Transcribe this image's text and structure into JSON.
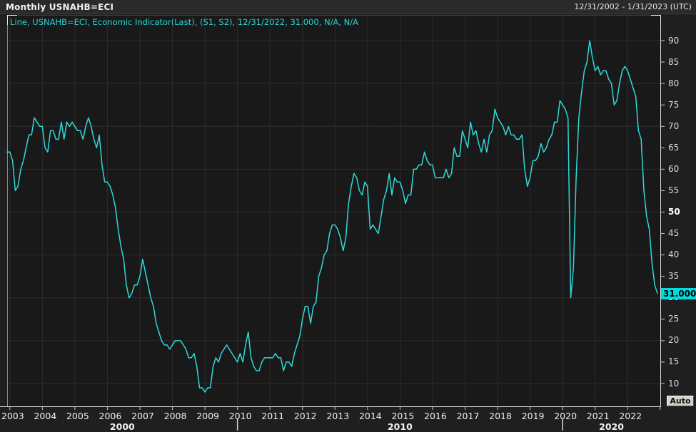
{
  "titlebar": {
    "title": "Monthly USNAHB=ECI",
    "date_range": "12/31/2002 - 1/31/2023 (UTC)"
  },
  "legend": {
    "text": "Line, USNAHB=ECI, Economic Indicator(Last), (S1, S2), 12/31/2022, 31.000, N/A, N/A"
  },
  "y_axis": {
    "ticks": [
      90,
      85,
      80,
      75,
      70,
      65,
      60,
      55,
      50,
      45,
      40,
      35,
      30,
      25,
      20,
      15,
      10
    ],
    "bold_tick": 50,
    "last_value_label": "31.000"
  },
  "x_axis": {
    "years": [
      "2003",
      "2004",
      "2005",
      "2006",
      "2007",
      "2008",
      "2009",
      "2010",
      "2011",
      "2012",
      "2013",
      "2014",
      "2015",
      "2016",
      "2017",
      "2018",
      "2019",
      "2020",
      "2021",
      "2022"
    ],
    "decades": [
      {
        "label": "2000",
        "start_year": 2003,
        "end_year": 2010
      },
      {
        "label": "2010",
        "start_year": 2010,
        "end_year": 2020
      },
      {
        "label": "2020",
        "start_year": 2020,
        "end_year": 2023
      }
    ],
    "decade_separator_years": [
      2010,
      2020
    ]
  },
  "auto_button": {
    "label": "Auto"
  },
  "colors": {
    "line": "#2fd9d9",
    "legend_text": "#2bd4d4",
    "badge_bg": "#00dcdc",
    "plot_bg": "#191919",
    "grid": "#2d2d2d",
    "axis_text": "#dcdcdc",
    "border_light": "#e0e0e0",
    "border_dim": "#8a8a8a"
  },
  "chart_data": {
    "type": "line",
    "title": "Monthly USNAHB=ECI",
    "series_name": "USNAHB=ECI, Economic Indicator(Last)",
    "frequency": "monthly",
    "start": "2002-12",
    "end": "2022-12",
    "last_date": "12/31/2022",
    "last_value": 31.0,
    "y_ticks": [
      10,
      20,
      30,
      40,
      50,
      60,
      70,
      80,
      90
    ],
    "ylim": [
      5,
      96
    ],
    "x_years": [
      2003,
      2004,
      2005,
      2006,
      2007,
      2008,
      2009,
      2010,
      2011,
      2012,
      2013,
      2014,
      2015,
      2016,
      2017,
      2018,
      2019,
      2020,
      2021,
      2022
    ],
    "grid": true,
    "legend_position": "top-left",
    "values": [
      64,
      64,
      62,
      55,
      56,
      60,
      62,
      65,
      68,
      68,
      72,
      71,
      70,
      70,
      65,
      64,
      69,
      69,
      67,
      67,
      71,
      67,
      71,
      70,
      71,
      70,
      69,
      69,
      67,
      70,
      72,
      70,
      67,
      65,
      68,
      61,
      57,
      57,
      56,
      54,
      51,
      46,
      42,
      39,
      33,
      30,
      31,
      33,
      33,
      35,
      39,
      36,
      33,
      30,
      28,
      24,
      22,
      20,
      19,
      19,
      18,
      19,
      20,
      20,
      20,
      19,
      18,
      16,
      16,
      17,
      14,
      9,
      9,
      8,
      9,
      9,
      14,
      16,
      15,
      17,
      18,
      19,
      18,
      17,
      16,
      15,
      17,
      15,
      19,
      22,
      16,
      14,
      13,
      13,
      15,
      16,
      16,
      16,
      16,
      17,
      16,
      16,
      13,
      15,
      15,
      14,
      17,
      19,
      21,
      25,
      28,
      28,
      24,
      28,
      29,
      35,
      37,
      40,
      41,
      45,
      47,
      47,
      46,
      44,
      41,
      44,
      52,
      56,
      59,
      58,
      55,
      54,
      57,
      56,
      46,
      47,
      46,
      45,
      49,
      53,
      55,
      59,
      54,
      58,
      57,
      57,
      55,
      52,
      54,
      54,
      60,
      60,
      61,
      61,
      64,
      62,
      61,
      61,
      58,
      58,
      58,
      58,
      60,
      58,
      59,
      65,
      63,
      63,
      69,
      67,
      65,
      71,
      68,
      69,
      66,
      64,
      67,
      64,
      68,
      69,
      74,
      72,
      71,
      70,
      68,
      70,
      68,
      68,
      67,
      67,
      68,
      60,
      56,
      58,
      62,
      62,
      63,
      66,
      64,
      65,
      67,
      68,
      71,
      71,
      76,
      75,
      74,
      72,
      30,
      37,
      58,
      72,
      78,
      83,
      85,
      90,
      86,
      83,
      84,
      82,
      83,
      83,
      81,
      80,
      75,
      76,
      80,
      83,
      84,
      83,
      81,
      79,
      77,
      69,
      67,
      55,
      49,
      46,
      38,
      33,
      31
    ]
  }
}
